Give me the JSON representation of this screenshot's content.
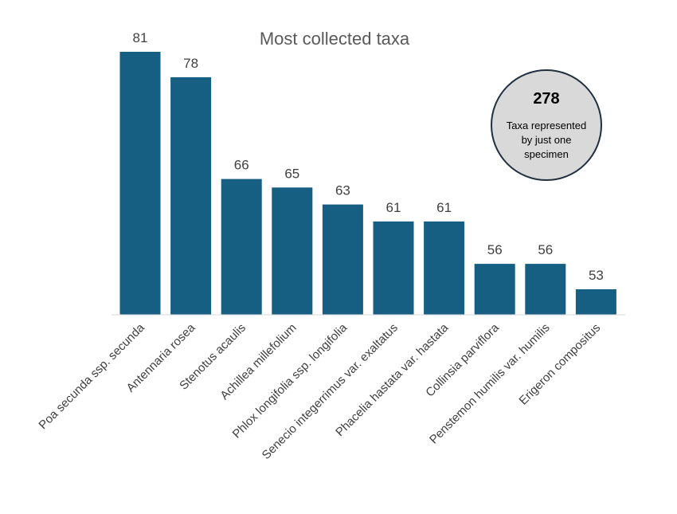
{
  "chart_data": {
    "type": "bar",
    "title": "Most collected taxa",
    "categories": [
      "Poa secunda ssp. secunda",
      "Antennaria rosea",
      "Stenotus acaulis",
      "Achillea millefolium",
      "Phlox longifolia ssp. longifolia",
      "Senecio integerrimus var. exaltatus",
      "Phacelia hastata var. hastata",
      "Collinsia parviflora",
      "Penstemon humilis var. humilis",
      "Erigeron compositus"
    ],
    "values": [
      81,
      78,
      66,
      65,
      63,
      61,
      61,
      56,
      56,
      53
    ],
    "xlabel": "",
    "ylabel": "",
    "ylim": [
      50,
      82
    ],
    "grid": false,
    "legend": "none",
    "bar_color": "#175f82",
    "data_labels": true
  },
  "callout": {
    "value": "278",
    "text_lines": [
      "Taxa represented",
      "by just one",
      "specimen"
    ],
    "fill_color": "#d9d9d9",
    "border_color": "#203040"
  }
}
